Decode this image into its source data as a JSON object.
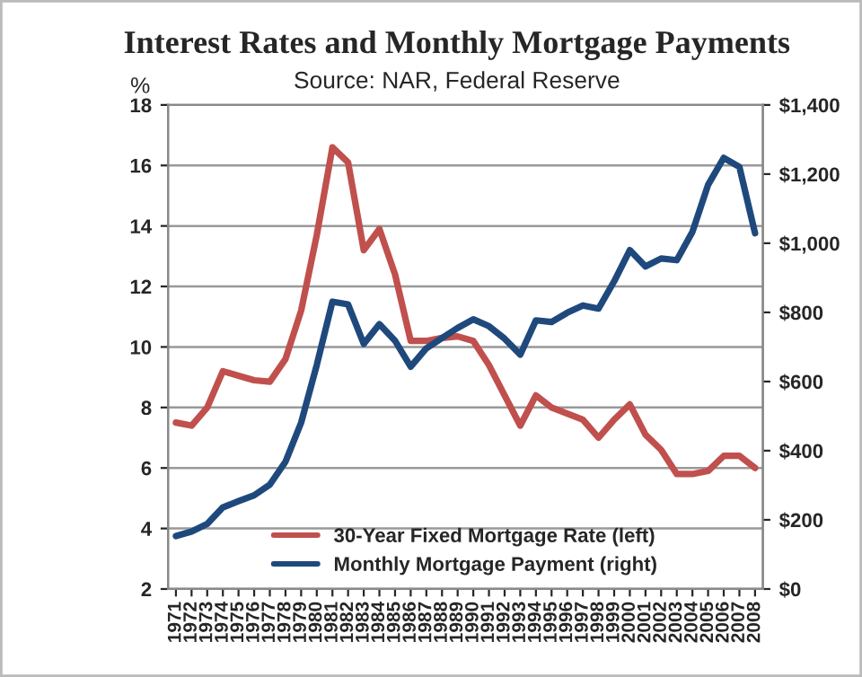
{
  "chart_data": {
    "type": "line",
    "title": "Interest Rates and Monthly Mortgage Payments",
    "subtitle": "Source: NAR, Federal Reserve",
    "ylabel": "%",
    "categories": [
      "1971",
      "1972",
      "1973",
      "1974",
      "1975",
      "1976",
      "1977",
      "1978",
      "1979",
      "1980",
      "1981",
      "1982",
      "1983",
      "1984",
      "1985",
      "1986",
      "1987",
      "1988",
      "1989",
      "1990",
      "1991",
      "1992",
      "1993",
      "1994",
      "1995",
      "1996",
      "1997",
      "1998",
      "1999",
      "2000",
      "2001",
      "2002",
      "2003",
      "2004",
      "2005",
      "2006",
      "2007",
      "2008"
    ],
    "series": [
      {
        "name": "30-Year Fixed Mortgage Rate (left)",
        "color": "#c0504d",
        "values": [
          7.5,
          7.4,
          8.0,
          9.2,
          9.05,
          8.9,
          8.85,
          9.6,
          11.2,
          13.7,
          16.6,
          16.1,
          13.2,
          13.9,
          12.4,
          10.2,
          10.2,
          10.3,
          10.35,
          10.2,
          9.4,
          8.4,
          7.4,
          8.4,
          8.0,
          7.8,
          7.6,
          7.0,
          7.6,
          8.1,
          7.1,
          6.6,
          5.8,
          5.8,
          5.9,
          6.4,
          6.4,
          6.0
        ]
      },
      {
        "name": "Monthly Mortgage Payment (right)",
        "color": "#1f497d",
        "axis": "y2",
        "values": [
          153,
          166,
          188,
          236,
          254,
          271,
          302,
          368,
          481,
          648,
          831,
          823,
          709,
          766,
          718,
          643,
          696,
          726,
          755,
          780,
          760,
          724,
          678,
          777,
          772,
          799,
          820,
          811,
          890,
          980,
          933,
          956,
          951,
          1033,
          1169,
          1247,
          1221,
          1029
        ]
      }
    ],
    "ylim": [
      2,
      18
    ],
    "yticks": [
      2,
      4,
      6,
      8,
      10,
      12,
      14,
      16,
      18
    ],
    "y2lim": [
      0,
      1400
    ],
    "y2ticks": [
      {
        "value": 0,
        "label": "$0"
      },
      {
        "value": 200,
        "label": "$200"
      },
      {
        "value": 400,
        "label": "$400"
      },
      {
        "value": 600,
        "label": "$600"
      },
      {
        "value": 800,
        "label": "$800"
      },
      {
        "value": 1000,
        "label": "$1,000"
      },
      {
        "value": 1200,
        "label": "$1,200"
      },
      {
        "value": 1400,
        "label": "$1,400"
      }
    ],
    "grid": "y",
    "legend": "bottom",
    "marker": "none",
    "line_style": "solid"
  }
}
